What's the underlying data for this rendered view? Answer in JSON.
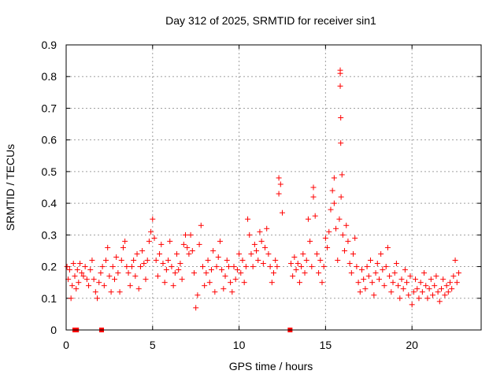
{
  "chart_data": {
    "type": "scatter",
    "title": "Day 312 of 2025, SRMTID for receiver sin1",
    "xlabel": "GPS time / hours",
    "ylabel": "SRMTID / TECUs",
    "xlim": [
      0,
      24
    ],
    "ylim": [
      0,
      0.9
    ],
    "xticks": [
      "0",
      "5",
      "10",
      "15",
      "20"
    ],
    "yticks": [
      "0",
      "0.1",
      "0.2",
      "0.3",
      "0.4",
      "0.5",
      "0.6",
      "0.7",
      "0.8",
      "0.9"
    ],
    "grid": true,
    "marker": "plus",
    "color": "#ff0000",
    "series": [
      {
        "name": "sin1",
        "points": [
          [
            0.05,
            0.2
          ],
          [
            0.12,
            0.16
          ],
          [
            0.2,
            0.19
          ],
          [
            0.28,
            0.1
          ],
          [
            0.35,
            0.14
          ],
          [
            0.42,
            0.21
          ],
          [
            0.5,
            0.17
          ],
          [
            0.58,
            0.13
          ],
          [
            0.65,
            0.19
          ],
          [
            0.72,
            0.15
          ],
          [
            0.8,
            0.21
          ],
          [
            0.9,
            0.18
          ],
          [
            1.0,
            0.17
          ],
          [
            1.1,
            0.2
          ],
          [
            1.2,
            0.16
          ],
          [
            1.3,
            0.14
          ],
          [
            1.4,
            0.19
          ],
          [
            1.5,
            0.22
          ],
          [
            1.6,
            0.16
          ],
          [
            1.7,
            0.12
          ],
          [
            1.8,
            0.1
          ],
          [
            1.9,
            0.15
          ],
          [
            2.0,
            0.18
          ],
          [
            2.1,
            0.2
          ],
          [
            2.2,
            0.14
          ],
          [
            2.3,
            0.22
          ],
          [
            2.4,
            0.26
          ],
          [
            2.5,
            0.17
          ],
          [
            2.6,
            0.12
          ],
          [
            2.7,
            0.2
          ],
          [
            2.8,
            0.16
          ],
          [
            2.9,
            0.23
          ],
          [
            3.0,
            0.18
          ],
          [
            3.1,
            0.12
          ],
          [
            3.2,
            0.22
          ],
          [
            3.3,
            0.26
          ],
          [
            3.4,
            0.28
          ],
          [
            3.5,
            0.2
          ],
          [
            3.6,
            0.18
          ],
          [
            3.7,
            0.14
          ],
          [
            3.8,
            0.2
          ],
          [
            3.9,
            0.22
          ],
          [
            4.0,
            0.17
          ],
          [
            4.1,
            0.24
          ],
          [
            4.2,
            0.13
          ],
          [
            4.3,
            0.2
          ],
          [
            4.4,
            0.25
          ],
          [
            4.5,
            0.21
          ],
          [
            4.6,
            0.16
          ],
          [
            4.7,
            0.22
          ],
          [
            4.8,
            0.28
          ],
          [
            4.9,
            0.31
          ],
          [
            5.0,
            0.35
          ],
          [
            5.1,
            0.29
          ],
          [
            5.2,
            0.22
          ],
          [
            5.3,
            0.17
          ],
          [
            5.4,
            0.24
          ],
          [
            5.5,
            0.27
          ],
          [
            5.6,
            0.21
          ],
          [
            5.7,
            0.15
          ],
          [
            5.8,
            0.19
          ],
          [
            5.9,
            0.22
          ],
          [
            6.0,
            0.28
          ],
          [
            6.1,
            0.2
          ],
          [
            6.2,
            0.14
          ],
          [
            6.3,
            0.18
          ],
          [
            6.4,
            0.24
          ],
          [
            6.5,
            0.19
          ],
          [
            6.6,
            0.21
          ],
          [
            6.7,
            0.16
          ],
          [
            6.8,
            0.27
          ],
          [
            6.9,
            0.3
          ],
          [
            7.0,
            0.26
          ],
          [
            7.1,
            0.24
          ],
          [
            7.2,
            0.3
          ],
          [
            7.3,
            0.25
          ],
          [
            7.4,
            0.18
          ],
          [
            7.5,
            0.07
          ],
          [
            7.6,
            0.11
          ],
          [
            7.7,
            0.27
          ],
          [
            7.8,
            0.33
          ],
          [
            7.9,
            0.2
          ],
          [
            8.0,
            0.14
          ],
          [
            8.1,
            0.18
          ],
          [
            8.2,
            0.22
          ],
          [
            8.3,
            0.15
          ],
          [
            8.4,
            0.19
          ],
          [
            8.5,
            0.25
          ],
          [
            8.6,
            0.12
          ],
          [
            8.7,
            0.2
          ],
          [
            8.8,
            0.23
          ],
          [
            8.9,
            0.28
          ],
          [
            9.0,
            0.19
          ],
          [
            9.1,
            0.13
          ],
          [
            9.2,
            0.17
          ],
          [
            9.3,
            0.22
          ],
          [
            9.4,
            0.2
          ],
          [
            9.5,
            0.15
          ],
          [
            9.6,
            0.12
          ],
          [
            9.7,
            0.2
          ],
          [
            9.8,
            0.16
          ],
          [
            9.9,
            0.19
          ],
          [
            10.0,
            0.24
          ],
          [
            10.1,
            0.18
          ],
          [
            10.2,
            0.22
          ],
          [
            10.3,
            0.15
          ],
          [
            10.4,
            0.2
          ],
          [
            10.5,
            0.35
          ],
          [
            10.6,
            0.3
          ],
          [
            10.7,
            0.24
          ],
          [
            10.8,
            0.2
          ],
          [
            10.9,
            0.27
          ],
          [
            11.0,
            0.25
          ],
          [
            11.1,
            0.22
          ],
          [
            11.2,
            0.31
          ],
          [
            11.3,
            0.28
          ],
          [
            11.4,
            0.21
          ],
          [
            11.5,
            0.26
          ],
          [
            11.6,
            0.32
          ],
          [
            11.7,
            0.24
          ],
          [
            11.8,
            0.2
          ],
          [
            11.9,
            0.15
          ],
          [
            12.0,
            0.18
          ],
          [
            12.1,
            0.22
          ],
          [
            12.2,
            0.2
          ],
          [
            12.3,
            0.43
          ],
          [
            12.4,
            0.46
          ],
          [
            12.5,
            0.37
          ],
          [
            13.0,
            0.21
          ],
          [
            13.1,
            0.17
          ],
          [
            13.2,
            0.23
          ],
          [
            13.3,
            0.19
          ],
          [
            13.4,
            0.21
          ],
          [
            13.5,
            0.15
          ],
          [
            13.6,
            0.2
          ],
          [
            13.7,
            0.24
          ],
          [
            13.8,
            0.18
          ],
          [
            13.9,
            0.22
          ],
          [
            14.0,
            0.35
          ],
          [
            14.1,
            0.28
          ],
          [
            14.2,
            0.2
          ],
          [
            14.3,
            0.42
          ],
          [
            14.4,
            0.36
          ],
          [
            14.5,
            0.24
          ],
          [
            14.6,
            0.18
          ],
          [
            14.7,
            0.22
          ],
          [
            14.8,
            0.15
          ],
          [
            14.9,
            0.2
          ],
          [
            15.0,
            0.29
          ],
          [
            15.1,
            0.26
          ],
          [
            15.2,
            0.31
          ],
          [
            15.3,
            0.38
          ],
          [
            15.4,
            0.44
          ],
          [
            15.5,
            0.4
          ],
          [
            15.6,
            0.32
          ],
          [
            15.7,
            0.22
          ],
          [
            15.8,
            0.35
          ],
          [
            15.9,
            0.42
          ],
          [
            16.0,
            0.3
          ],
          [
            16.1,
            0.25
          ],
          [
            16.2,
            0.33
          ],
          [
            16.3,
            0.28
          ],
          [
            16.4,
            0.21
          ],
          [
            16.5,
            0.18
          ],
          [
            16.6,
            0.24
          ],
          [
            16.7,
            0.29
          ],
          [
            16.8,
            0.2
          ],
          [
            16.9,
            0.15
          ],
          [
            17.0,
            0.12
          ],
          [
            17.1,
            0.19
          ],
          [
            17.2,
            0.16
          ],
          [
            17.3,
            0.13
          ],
          [
            17.4,
            0.2
          ],
          [
            17.5,
            0.17
          ],
          [
            17.6,
            0.22
          ],
          [
            17.7,
            0.15
          ],
          [
            17.8,
            0.11
          ],
          [
            17.9,
            0.18
          ],
          [
            18.0,
            0.21
          ],
          [
            18.1,
            0.16
          ],
          [
            18.2,
            0.24
          ],
          [
            18.3,
            0.19
          ],
          [
            18.4,
            0.14
          ],
          [
            18.5,
            0.2
          ],
          [
            18.6,
            0.26
          ],
          [
            18.7,
            0.17
          ],
          [
            18.8,
            0.12
          ],
          [
            18.9,
            0.15
          ],
          [
            19.0,
            0.18
          ],
          [
            19.1,
            0.21
          ],
          [
            19.2,
            0.14
          ],
          [
            19.3,
            0.1
          ],
          [
            19.4,
            0.16
          ],
          [
            19.5,
            0.13
          ],
          [
            19.6,
            0.19
          ],
          [
            19.7,
            0.15
          ],
          [
            19.8,
            0.11
          ],
          [
            19.9,
            0.17
          ],
          [
            20.0,
            0.08
          ],
          [
            20.1,
            0.12
          ],
          [
            20.2,
            0.16
          ],
          [
            20.3,
            0.13
          ],
          [
            20.4,
            0.1
          ],
          [
            20.5,
            0.15
          ],
          [
            20.6,
            0.12
          ],
          [
            20.7,
            0.18
          ],
          [
            20.8,
            0.14
          ],
          [
            20.9,
            0.1
          ],
          [
            21.0,
            0.13
          ],
          [
            21.1,
            0.16
          ],
          [
            21.2,
            0.11
          ],
          [
            21.3,
            0.14
          ],
          [
            21.4,
            0.17
          ],
          [
            21.5,
            0.12
          ],
          [
            21.6,
            0.09
          ],
          [
            21.7,
            0.13
          ],
          [
            21.8,
            0.16
          ],
          [
            21.9,
            0.11
          ],
          [
            22.0,
            0.14
          ],
          [
            22.1,
            0.12
          ],
          [
            22.2,
            0.15
          ],
          [
            22.3,
            0.13
          ],
          [
            22.4,
            0.17
          ],
          [
            22.5,
            0.22
          ],
          [
            22.6,
            0.15
          ],
          [
            22.7,
            0.18
          ],
          [
            15.85,
            0.82
          ],
          [
            15.85,
            0.81
          ],
          [
            15.85,
            0.77
          ],
          [
            15.88,
            0.67
          ],
          [
            15.88,
            0.59
          ],
          [
            15.95,
            0.49
          ],
          [
            12.3,
            0.48
          ],
          [
            14.3,
            0.45
          ],
          [
            15.5,
            0.48
          ]
        ]
      }
    ],
    "gap_markers": [
      0.5,
      0.6,
      2.05,
      12.95
    ]
  }
}
